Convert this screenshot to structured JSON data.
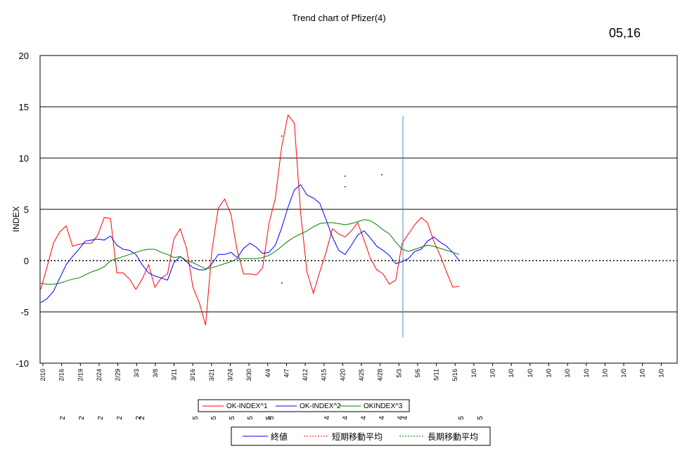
{
  "header": {
    "date_label": "05,16"
  },
  "chart_data": {
    "type": "line",
    "title": "Trend chart of Pfizer(4)",
    "xlabel": "",
    "ylabel": "INDEX",
    "ylim": [
      -10,
      20
    ],
    "yticks": [
      20,
      15,
      10,
      5,
      0,
      -5,
      -10
    ],
    "grid": true,
    "x_tick_labels": [
      "2/10",
      "2/16",
      "2/19",
      "2/24",
      "2/29",
      "3/3",
      "3/8",
      "3/11",
      "3/16",
      "3/21",
      "3/24",
      "3/30",
      "4/4",
      "4/7",
      "4/12",
      "4/15",
      "4/20",
      "4/25",
      "4/28",
      "5/3",
      "5/6",
      "5/11",
      "5/16",
      "1/0",
      "1/0",
      "1/0",
      "1/0",
      "1/0",
      "1/0",
      "1/0",
      "1/0",
      "1/0",
      "1/0",
      "1/0"
    ],
    "series": [
      {
        "name": "OK-INDEX^1",
        "color": "#ff0000",
        "values": [
          -2.8,
          -0.6,
          1.7,
          2.8,
          3.4,
          1.4,
          1.6,
          1.7,
          1.7,
          2.5,
          4.2,
          4.1,
          -1.2,
          -1.2,
          -1.8,
          -2.8,
          -1.8,
          -0.4,
          -2.6,
          -1.7,
          -1.3,
          2.1,
          3.1,
          1.2,
          -2.6,
          -4.1,
          -6.3,
          1.0,
          5.1,
          6.0,
          4.5,
          0.9,
          -1.3,
          -1.3,
          -1.4,
          -0.7,
          3.6,
          6.1,
          11.1,
          14.2,
          13.4,
          4.6,
          -1.1,
          -3.2,
          -1.1,
          0.8,
          3.1,
          2.6,
          2.3,
          2.9,
          3.7,
          2.0,
          0.2,
          -0.9,
          -1.3,
          -2.3,
          -1.9,
          1.7,
          2.6,
          3.5,
          4.2,
          3.7,
          1.9,
          0.5,
          -1.1,
          -2.6,
          -2.5
        ],
        "x_start_index": 0
      },
      {
        "name": "OK-INDEX^2",
        "color": "#0000ff",
        "values": [
          -4.1,
          -3.7,
          -3.0,
          -1.7,
          -0.4,
          0.4,
          1.1,
          1.9,
          2.0,
          2.1,
          2.0,
          2.4,
          1.5,
          1.1,
          1.0,
          0.6,
          -0.4,
          -1.2,
          -1.5,
          -1.7,
          -1.9,
          -0.2,
          0.4,
          -0.1,
          -0.7,
          -0.9,
          -0.9,
          -0.3,
          0.6,
          0.6,
          0.8,
          0.3,
          1.2,
          1.7,
          1.3,
          0.7,
          0.8,
          1.5,
          3.2,
          5.2,
          6.9,
          7.4,
          6.4,
          6.1,
          5.6,
          4.0,
          2.3,
          1.0,
          0.6,
          1.5,
          2.5,
          2.9,
          2.2,
          1.4,
          1.0,
          0.5,
          -0.3,
          -0.1,
          0.2,
          0.9,
          1.1,
          1.9,
          2.3,
          1.8,
          1.4,
          0.8,
          0.0
        ],
        "x_start_index": 0
      },
      {
        "name": "OKINDEX^3",
        "color": "#008000",
        "values": [
          -2.2,
          -2.3,
          -2.3,
          -2.2,
          -2.0,
          -1.8,
          -1.7,
          -1.4,
          -1.1,
          -0.9,
          -0.6,
          0.0,
          0.2,
          0.4,
          0.6,
          0.8,
          1.0,
          1.1,
          1.1,
          0.8,
          0.6,
          0.3,
          0.4,
          0.0,
          -0.2,
          -0.5,
          -0.8,
          -0.7,
          -0.5,
          -0.3,
          -0.1,
          0.2,
          0.2,
          0.2,
          0.2,
          0.3,
          0.5,
          0.9,
          1.4,
          1.9,
          2.3,
          2.6,
          2.9,
          3.3,
          3.6,
          3.7,
          3.7,
          3.6,
          3.5,
          3.6,
          3.8,
          4.0,
          3.9,
          3.5,
          3.0,
          2.6,
          1.8,
          1.1,
          0.9,
          1.1,
          1.3,
          1.5,
          1.4,
          1.2,
          1.0,
          0.8,
          0.6
        ],
        "x_start_index": 0
      }
    ],
    "legend": {
      "placement": "bottom",
      "entries": [
        "OK-INDEX^1",
        "OK-INDEX^2",
        "OKINDEX^3"
      ]
    },
    "secondary_legend": {
      "placement": "bottom",
      "entries": [
        {
          "label": "終値",
          "color": "#0000ff",
          "style": "solid"
        },
        {
          "label": "短期移動平均",
          "color": "#ff0000",
          "style": "dashed"
        },
        {
          "label": "長期移動平均",
          "color": "#008000",
          "style": "dashed"
        }
      ]
    },
    "vertical_marker": {
      "x_label": "5/3",
      "y_from": -7.5,
      "y_to": 14.1,
      "color": "#4a8ab0"
    },
    "stray_labels": [
      "2",
      "2",
      "2",
      "2",
      "2",
      "2",
      "5",
      "5",
      "5",
      "5",
      "5",
      "5",
      "4",
      "4",
      "4",
      "4",
      "4",
      "4",
      "5",
      "5"
    ]
  }
}
